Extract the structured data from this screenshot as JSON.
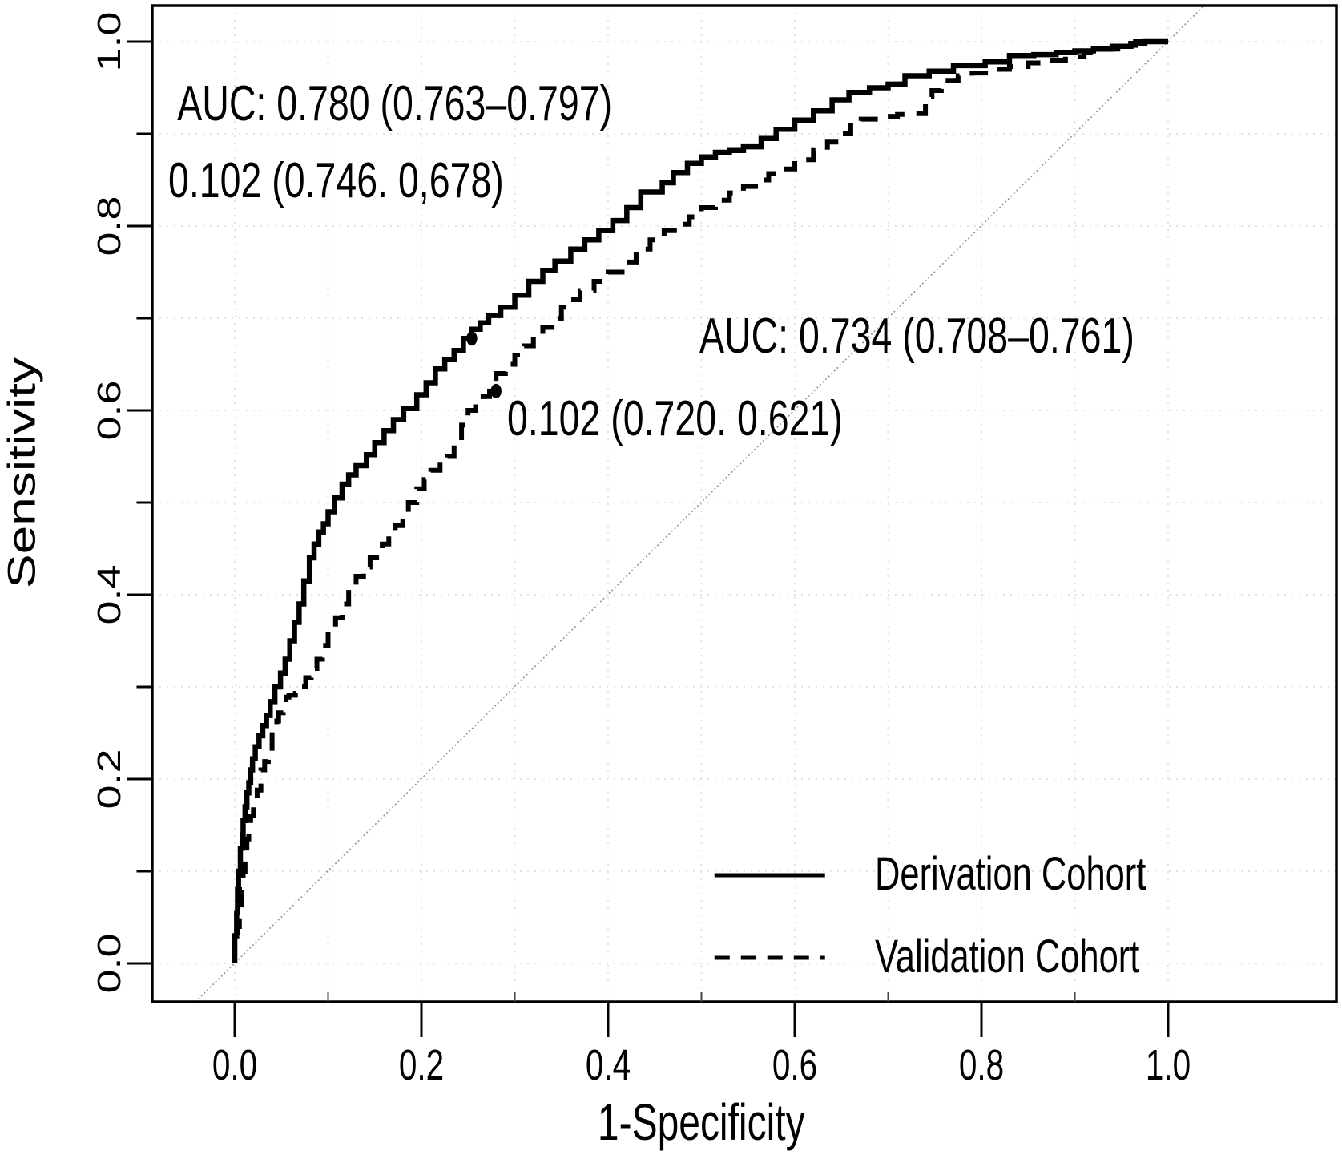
{
  "figure": {
    "background": "#ffffff",
    "axis_color": "#000000",
    "grid_color": "#e3e3e3",
    "diagonal_color": "#999999",
    "curve_color": "#000000"
  },
  "axes": {
    "x": {
      "label": "1-Specificity",
      "ticks": [
        "0.0",
        "0.2",
        "0.4",
        "0.6",
        "0.8",
        "1.0"
      ],
      "range": [
        0,
        1
      ]
    },
    "y": {
      "label": "Sensitivity",
      "ticks": [
        "0.0",
        "0.2",
        "0.4",
        "0.6",
        "0.8",
        "1.0"
      ],
      "range": [
        0,
        1
      ]
    }
  },
  "annotations": {
    "auc_derivation": "AUC: 0.780 (0.763–0.797)",
    "cutoff_derivation": "0.102 (0.746. 0,678)",
    "auc_validation": "AUC: 0.734 (0.708–0.761)",
    "cutoff_validation": "0.102 (0.720. 0.621)"
  },
  "legend": {
    "items": [
      {
        "label": "Derivation Cohort",
        "style": "solid"
      },
      {
        "label": "Validation Cohort",
        "style": "dashed"
      }
    ]
  },
  "chart_data": {
    "type": "line",
    "subtype": "roc-step-curves",
    "title": "",
    "xlabel": "1-Specificity",
    "ylabel": "Sensitivity",
    "xlim": [
      0,
      1
    ],
    "ylim": [
      0,
      1
    ],
    "grid": true,
    "grid_interval": 0.1,
    "diagonal_reference": true,
    "legend_position": "bottom-right",
    "series": [
      {
        "name": "Derivation Cohort",
        "style": "solid",
        "auc": "0.780 (0.763–0.797)",
        "cutoff": {
          "value": 0.102,
          "specificity": 0.746,
          "sensitivity": 0.678
        },
        "points": [
          [
            0,
            0
          ],
          [
            0.002,
            0.03
          ],
          [
            0.003,
            0.055
          ],
          [
            0.004,
            0.08
          ],
          [
            0.006,
            0.1
          ],
          [
            0.008,
            0.125
          ],
          [
            0.009,
            0.14
          ],
          [
            0.011,
            0.155
          ],
          [
            0.013,
            0.17
          ],
          [
            0.015,
            0.185
          ],
          [
            0.017,
            0.196
          ],
          [
            0.019,
            0.21
          ],
          [
            0.022,
            0.222
          ],
          [
            0.026,
            0.235
          ],
          [
            0.03,
            0.247
          ],
          [
            0.034,
            0.258
          ],
          [
            0.038,
            0.269
          ],
          [
            0.043,
            0.284
          ],
          [
            0.049,
            0.3
          ],
          [
            0.054,
            0.315
          ],
          [
            0.059,
            0.33
          ],
          [
            0.064,
            0.35
          ],
          [
            0.069,
            0.37
          ],
          [
            0.074,
            0.39
          ],
          [
            0.08,
            0.415
          ],
          [
            0.085,
            0.44
          ],
          [
            0.09,
            0.455
          ],
          [
            0.095,
            0.468
          ],
          [
            0.1,
            0.477
          ],
          [
            0.107,
            0.49
          ],
          [
            0.115,
            0.505
          ],
          [
            0.122,
            0.52
          ],
          [
            0.13,
            0.53
          ],
          [
            0.141,
            0.54
          ],
          [
            0.15,
            0.552
          ],
          [
            0.16,
            0.565
          ],
          [
            0.17,
            0.578
          ],
          [
            0.181,
            0.59
          ],
          [
            0.195,
            0.602
          ],
          [
            0.205,
            0.617
          ],
          [
            0.215,
            0.63
          ],
          [
            0.225,
            0.645
          ],
          [
            0.235,
            0.655
          ],
          [
            0.245,
            0.665
          ],
          [
            0.254,
            0.678
          ],
          [
            0.263,
            0.688
          ],
          [
            0.272,
            0.695
          ],
          [
            0.285,
            0.703
          ],
          [
            0.3,
            0.712
          ],
          [
            0.315,
            0.725
          ],
          [
            0.33,
            0.74
          ],
          [
            0.343,
            0.752
          ],
          [
            0.36,
            0.762
          ],
          [
            0.375,
            0.775
          ],
          [
            0.39,
            0.785
          ],
          [
            0.405,
            0.795
          ],
          [
            0.42,
            0.806
          ],
          [
            0.435,
            0.82
          ],
          [
            0.458,
            0.837
          ],
          [
            0.47,
            0.847
          ],
          [
            0.485,
            0.858
          ],
          [
            0.5,
            0.868
          ],
          [
            0.515,
            0.875
          ],
          [
            0.53,
            0.88
          ],
          [
            0.545,
            0.882
          ],
          [
            0.564,
            0.886
          ],
          [
            0.58,
            0.895
          ],
          [
            0.6,
            0.905
          ],
          [
            0.62,
            0.915
          ],
          [
            0.64,
            0.925
          ],
          [
            0.658,
            0.937
          ],
          [
            0.68,
            0.945
          ],
          [
            0.7,
            0.95
          ],
          [
            0.718,
            0.954
          ],
          [
            0.744,
            0.963
          ],
          [
            0.77,
            0.968
          ],
          [
            0.804,
            0.974
          ],
          [
            0.83,
            0.978
          ],
          [
            0.856,
            0.985
          ],
          [
            0.88,
            0.986
          ],
          [
            0.9,
            0.988
          ],
          [
            0.92,
            0.99
          ],
          [
            0.94,
            0.992
          ],
          [
            0.96,
            0.995
          ],
          [
            0.975,
            0.998
          ],
          [
            0.985,
            1.0
          ],
          [
            1,
            1
          ]
        ]
      },
      {
        "name": "Validation Cohort",
        "style": "dashed",
        "auc": "0.734 (0.708–0.761)",
        "cutoff": {
          "value": 0.102,
          "specificity": 0.72,
          "sensitivity": 0.621
        },
        "points": [
          [
            0,
            0
          ],
          [
            0.003,
            0.02
          ],
          [
            0.005,
            0.04
          ],
          [
            0.007,
            0.06
          ],
          [
            0.009,
            0.08
          ],
          [
            0.011,
            0.1
          ],
          [
            0.013,
            0.12
          ],
          [
            0.015,
            0.135
          ],
          [
            0.017,
            0.145
          ],
          [
            0.02,
            0.16
          ],
          [
            0.024,
            0.175
          ],
          [
            0.028,
            0.188
          ],
          [
            0.032,
            0.21
          ],
          [
            0.036,
            0.219
          ],
          [
            0.04,
            0.225
          ],
          [
            0.045,
            0.258
          ],
          [
            0.047,
            0.263
          ],
          [
            0.052,
            0.272
          ],
          [
            0.055,
            0.277
          ],
          [
            0.058,
            0.289
          ],
          [
            0.065,
            0.291
          ],
          [
            0.07,
            0.293
          ],
          [
            0.076,
            0.3
          ],
          [
            0.082,
            0.31
          ],
          [
            0.088,
            0.32
          ],
          [
            0.094,
            0.33
          ],
          [
            0.1,
            0.345
          ],
          [
            0.108,
            0.36
          ],
          [
            0.115,
            0.375
          ],
          [
            0.122,
            0.39
          ],
          [
            0.13,
            0.41
          ],
          [
            0.138,
            0.42
          ],
          [
            0.145,
            0.43
          ],
          [
            0.152,
            0.44
          ],
          [
            0.158,
            0.443
          ],
          [
            0.165,
            0.455
          ],
          [
            0.172,
            0.465
          ],
          [
            0.18,
            0.475
          ],
          [
            0.186,
            0.483
          ],
          [
            0.195,
            0.5
          ],
          [
            0.203,
            0.515
          ],
          [
            0.21,
            0.525
          ],
          [
            0.22,
            0.535
          ],
          [
            0.228,
            0.545
          ],
          [
            0.235,
            0.55
          ],
          [
            0.243,
            0.565
          ],
          [
            0.25,
            0.584
          ],
          [
            0.258,
            0.6
          ],
          [
            0.266,
            0.61
          ],
          [
            0.273,
            0.615
          ],
          [
            0.28,
            0.621
          ],
          [
            0.29,
            0.64
          ],
          [
            0.3,
            0.65
          ],
          [
            0.31,
            0.66
          ],
          [
            0.32,
            0.67
          ],
          [
            0.33,
            0.68
          ],
          [
            0.34,
            0.69
          ],
          [
            0.35,
            0.7
          ],
          [
            0.358,
            0.712
          ],
          [
            0.37,
            0.72
          ],
          [
            0.385,
            0.73
          ],
          [
            0.4,
            0.74
          ],
          [
            0.415,
            0.75
          ],
          [
            0.43,
            0.761
          ],
          [
            0.445,
            0.775
          ],
          [
            0.46,
            0.785
          ],
          [
            0.475,
            0.795
          ],
          [
            0.487,
            0.802
          ],
          [
            0.5,
            0.81
          ],
          [
            0.515,
            0.82
          ],
          [
            0.53,
            0.828
          ],
          [
            0.545,
            0.836
          ],
          [
            0.558,
            0.843
          ],
          [
            0.572,
            0.85
          ],
          [
            0.585,
            0.857
          ],
          [
            0.6,
            0.862
          ],
          [
            0.62,
            0.872
          ],
          [
            0.635,
            0.882
          ],
          [
            0.647,
            0.891
          ],
          [
            0.66,
            0.9
          ],
          [
            0.671,
            0.912
          ],
          [
            0.69,
            0.916
          ],
          [
            0.71,
            0.919
          ],
          [
            0.73,
            0.921
          ],
          [
            0.74,
            0.922
          ],
          [
            0.747,
            0.94
          ],
          [
            0.757,
            0.947
          ],
          [
            0.775,
            0.958
          ],
          [
            0.79,
            0.963
          ],
          [
            0.81,
            0.966
          ],
          [
            0.83,
            0.97
          ],
          [
            0.85,
            0.973
          ],
          [
            0.87,
            0.977
          ],
          [
            0.89,
            0.98
          ],
          [
            0.91,
            0.984
          ],
          [
            0.93,
            0.988
          ],
          [
            0.95,
            0.992
          ],
          [
            0.965,
            0.996
          ],
          [
            0.975,
            1.0
          ],
          [
            1,
            1
          ]
        ]
      }
    ]
  }
}
